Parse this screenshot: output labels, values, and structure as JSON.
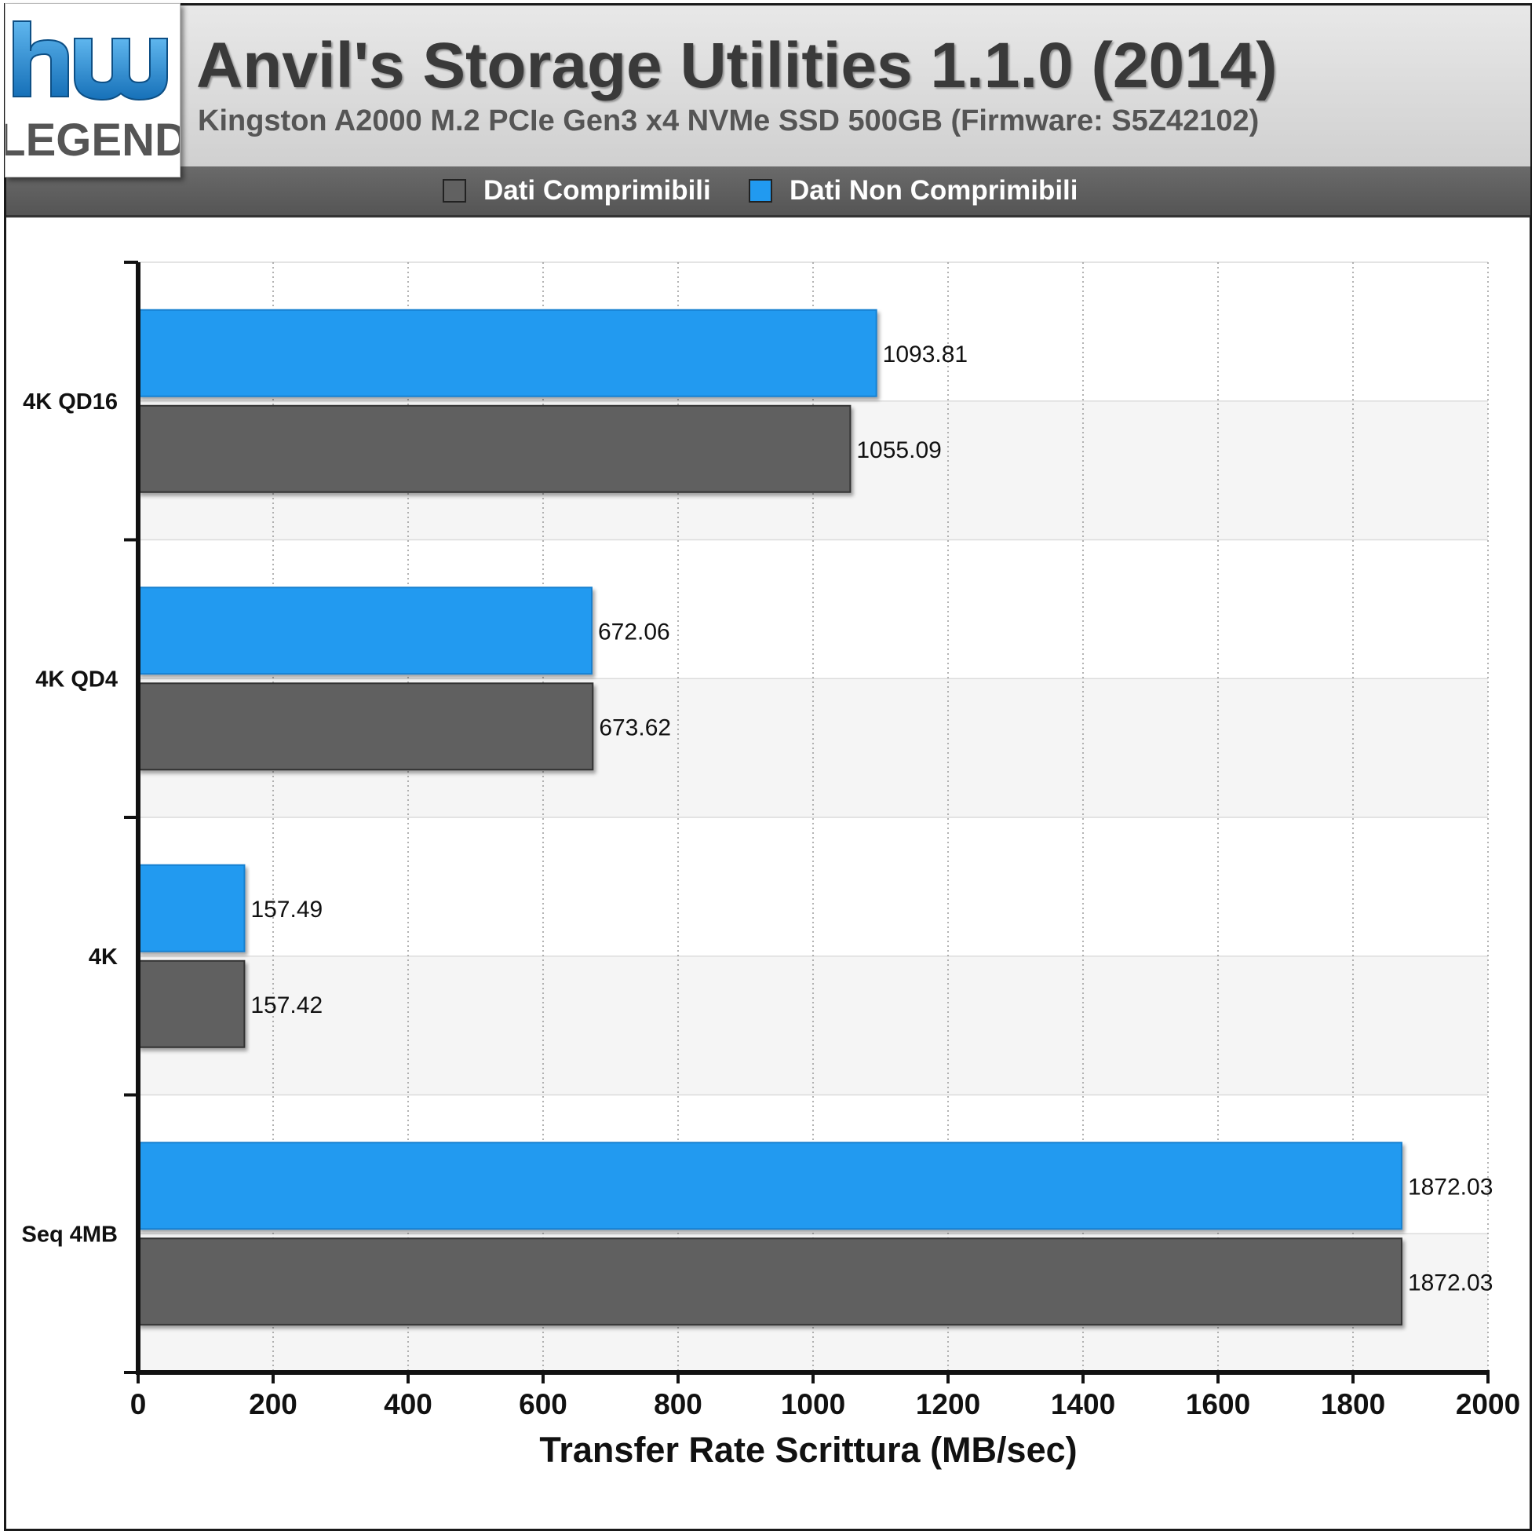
{
  "header": {
    "logo_top": "hw",
    "logo_bottom": "LEGEND",
    "title": "Anvil's Storage Utilities 1.1.0 (2014)",
    "subtitle": "Kingston A2000 M.2 PCIe Gen3 x4 NVMe SSD 500GB (Firmware: S5Z42102)"
  },
  "colors": {
    "compressible": "#616161",
    "incompressible": "#219af0",
    "logo_blue": "#2b8fd6"
  },
  "chart_data": {
    "type": "bar",
    "orientation": "horizontal",
    "categories": [
      "4K QD16",
      "4K QD4",
      "4K",
      "Seq 4MB"
    ],
    "series": [
      {
        "name": "Dati Non Comprimibili",
        "color": "#219af0",
        "values": [
          1093.81,
          672.06,
          157.49,
          1872.03
        ]
      },
      {
        "name": "Dati Comprimibili",
        "color": "#616161",
        "values": [
          1055.09,
          673.62,
          157.42,
          1872.03
        ]
      }
    ],
    "value_labels": [
      [
        "1093.81",
        "672.06",
        "157.49",
        "1872.03"
      ],
      [
        "1055.09",
        "673.62",
        "157.42",
        "1872.03"
      ]
    ],
    "legend": [
      "Dati Comprimibili",
      "Dati Non Comprimibili"
    ],
    "legend_placement": "top",
    "xlabel": "Transfer Rate Scrittura (MB/sec)",
    "xlim": [
      0,
      2000
    ],
    "xticks": [
      "0",
      "200",
      "400",
      "600",
      "800",
      "1000",
      "1200",
      "1400",
      "1600",
      "1800",
      "2000"
    ],
    "grid": "vertical dotted"
  }
}
